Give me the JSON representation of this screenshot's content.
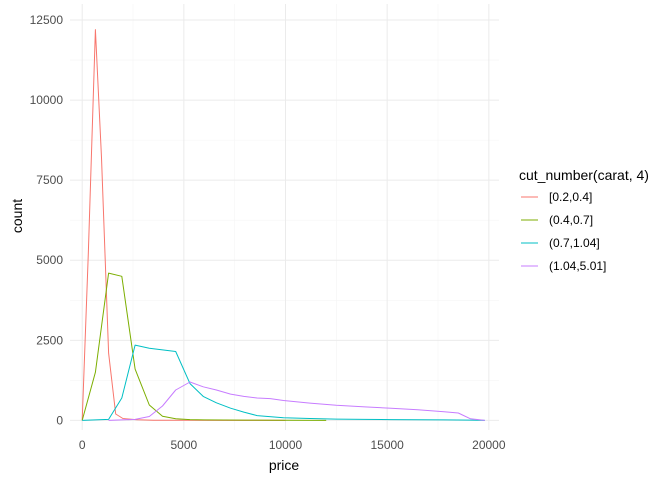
{
  "chart_data": {
    "type": "line",
    "title": "",
    "xlabel": "price",
    "ylabel": "count",
    "xlim": [
      -600,
      20500
    ],
    "ylim": [
      -300,
      13000
    ],
    "x_ticks": [
      0,
      5000,
      10000,
      15000,
      20000
    ],
    "y_ticks": [
      0,
      2500,
      5000,
      7500,
      10000,
      12500
    ],
    "x_tick_labels": [
      "0",
      "5000",
      "10000",
      "15000",
      "20000"
    ],
    "y_tick_labels": [
      "0",
      "2500",
      "5000",
      "7500",
      "10000",
      "12500"
    ],
    "grid": true,
    "legend": {
      "title": "cut_number(carat, 4)",
      "position": "right"
    },
    "series": [
      {
        "name": "[0.2,0.4]",
        "color": "#F8766D",
        "x": [
          0,
          300,
          650,
          950,
          1300,
          1650,
          2000,
          2700,
          3500,
          5000,
          7000,
          10000
        ],
        "y": [
          0,
          5200,
          12200,
          8200,
          2100,
          200,
          60,
          20,
          5,
          2,
          0,
          0
        ]
      },
      {
        "name": "(0.4,0.7]",
        "color": "#7CAE00",
        "x": [
          0,
          650,
          1300,
          1950,
          2600,
          3300,
          3950,
          4600,
          5300,
          6000,
          8000,
          10000,
          12000
        ],
        "y": [
          0,
          1500,
          4600,
          4500,
          1600,
          480,
          130,
          50,
          25,
          15,
          8,
          5,
          0
        ]
      },
      {
        "name": "(0.7,1.04]",
        "color": "#00BFC4",
        "x": [
          0,
          1300,
          1950,
          2600,
          3300,
          3950,
          4600,
          5300,
          5950,
          6600,
          7300,
          7950,
          8600,
          9900,
          11200,
          12500,
          13900,
          15200,
          16500,
          17800,
          19100,
          19800
        ],
        "y": [
          0,
          30,
          700,
          2350,
          2250,
          2200,
          2150,
          1150,
          750,
          550,
          380,
          260,
          150,
          80,
          60,
          40,
          30,
          25,
          20,
          15,
          10,
          0
        ]
      },
      {
        "name": "(1.04,5.01]",
        "color": "#C77CFF",
        "x": [
          1300,
          2600,
          3300,
          3950,
          4600,
          5300,
          5950,
          6600,
          7300,
          7950,
          8600,
          9250,
          9900,
          11200,
          12500,
          13900,
          15200,
          16500,
          17800,
          18500,
          19100,
          19800
        ],
        "y": [
          0,
          30,
          120,
          450,
          950,
          1200,
          1050,
          950,
          820,
          750,
          700,
          680,
          620,
          540,
          470,
          420,
          380,
          330,
          270,
          230,
          50,
          0
        ]
      }
    ]
  }
}
